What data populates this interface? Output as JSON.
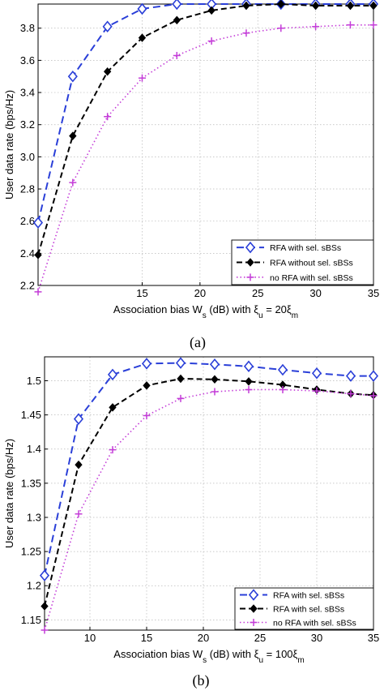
{
  "chart_data": [
    {
      "type": "line",
      "caption": "(a)",
      "xlabel": "Association bias W_s (dB) with ξ_u = 20ξ_m",
      "ylabel": "User data rate (bps/Hz)",
      "xlim": [
        6,
        35
      ],
      "ylim": [
        2.2,
        3.95
      ],
      "xticks": [
        15,
        20,
        25,
        30,
        35
      ],
      "yticks": [
        2.2,
        2.4,
        2.6,
        2.8,
        3.0,
        3.2,
        3.4,
        3.6,
        3.8
      ],
      "ytick_labels": [
        "2.2",
        "2.4",
        "2.6",
        "2.8",
        "3.0",
        "3.2",
        "3.4",
        "3.6",
        "3.8"
      ],
      "grid": true,
      "legend_position": "bottom-right",
      "x": [
        6,
        9,
        12,
        15,
        18,
        21,
        24,
        27,
        30,
        33,
        35
      ],
      "series": [
        {
          "name": "RFA with sel. sBSs",
          "color": "#2a3fd8",
          "marker": "diamond-open",
          "dash": "9,5",
          "values": [
            2.59,
            3.5,
            3.81,
            3.92,
            3.95,
            3.95,
            3.95,
            3.95,
            3.95,
            3.95,
            3.95
          ]
        },
        {
          "name": "RFA without sel. sBSs",
          "color": "#000000",
          "marker": "diamond-filled",
          "dash": "7,4",
          "values": [
            2.39,
            3.13,
            3.53,
            3.74,
            3.85,
            3.91,
            3.94,
            3.95,
            3.94,
            3.94,
            3.94
          ]
        },
        {
          "name": "no RFA with sel. sBSs",
          "color": "#c43dd8",
          "marker": "plus",
          "dash": "1.5,3",
          "values": [
            2.16,
            2.84,
            3.25,
            3.49,
            3.63,
            3.72,
            3.77,
            3.8,
            3.81,
            3.82,
            3.82
          ]
        }
      ]
    },
    {
      "type": "line",
      "caption": "(b)",
      "xlabel": "Association bias W_s (dB) with ξ_u = 100ξ_m",
      "ylabel": "User data rate (bps/Hz)",
      "xlim": [
        6,
        35
      ],
      "ylim": [
        1.135,
        1.535
      ],
      "xticks": [
        10,
        15,
        20,
        25,
        30,
        35
      ],
      "yticks": [
        1.15,
        1.2,
        1.25,
        1.3,
        1.35,
        1.4,
        1.45,
        1.5
      ],
      "ytick_labels": [
        "1.15",
        "1.2",
        "1.25",
        "1.3",
        "1.35",
        "1.4",
        "1.45",
        "1.5"
      ],
      "grid": true,
      "legend_position": "bottom-right",
      "x": [
        6,
        9,
        12,
        15,
        18,
        21,
        24,
        27,
        30,
        33,
        35
      ],
      "series": [
        {
          "name": "RFA with sel. sBSs",
          "color": "#2a3fd8",
          "marker": "diamond-open",
          "dash": "9,5",
          "values": [
            1.215,
            1.444,
            1.509,
            1.525,
            1.526,
            1.524,
            1.521,
            1.516,
            1.511,
            1.507,
            1.507
          ]
        },
        {
          "name": "RFA with sel. sBSs",
          "color": "#000000",
          "marker": "diamond-filled",
          "dash": "7,4",
          "values": [
            1.17,
            1.377,
            1.461,
            1.493,
            1.503,
            1.502,
            1.499,
            1.494,
            1.487,
            1.481,
            1.479
          ]
        },
        {
          "name": "no RFA with sel. sBSs",
          "color": "#c43dd8",
          "marker": "plus",
          "dash": "1.5,3",
          "values": [
            1.135,
            1.305,
            1.399,
            1.449,
            1.474,
            1.484,
            1.487,
            1.487,
            1.485,
            1.481,
            1.478
          ]
        }
      ]
    }
  ]
}
